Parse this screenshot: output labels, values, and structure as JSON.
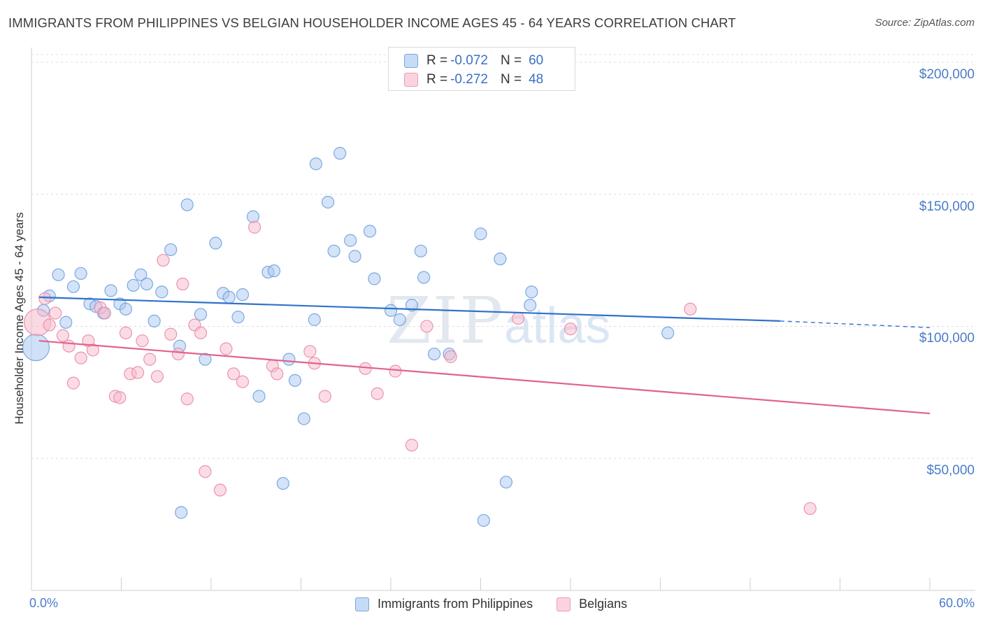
{
  "title": "IMMIGRANTS FROM PHILIPPINES VS BELGIAN HOUSEHOLDER INCOME AGES 45 - 64 YEARS CORRELATION CHART",
  "source": "Source: ZipAtlas.com",
  "watermark": {
    "main": "ZIP",
    "sub": "atlas"
  },
  "stats": [
    {
      "r_label": "R =",
      "r_value": "-0.072",
      "n_label": "N =",
      "n_value": "60",
      "color": "#a9c8f0"
    },
    {
      "r_label": "R =",
      "r_value": "-0.272",
      "n_label": "N =",
      "n_value": "48",
      "color": "#f7b9cc"
    }
  ],
  "legend": [
    {
      "label": "Immigrants from Philippines",
      "color": "#a9c8f0"
    },
    {
      "label": "Belgians",
      "color": "#f7b9cc"
    }
  ],
  "axes": {
    "ylabel": "Householder Income Ages 45 - 64 years",
    "xmin_label": "0.0%",
    "xmax_label": "60.0%",
    "yticks": [
      {
        "value": 200000,
        "label": "$200,000"
      },
      {
        "value": 150000,
        "label": "$150,000"
      },
      {
        "value": 100000,
        "label": "$100,000"
      },
      {
        "value": 50000,
        "label": "$50,000"
      }
    ]
  },
  "chart_data": {
    "type": "scatter",
    "title": "IMMIGRANTS FROM PHILIPPINES VS BELGIAN HOUSEHOLDER INCOME AGES 45 - 64 YEARS CORRELATION CHART",
    "xlabel": "",
    "ylabel": "Householder Income Ages 45 - 64 years",
    "xlim": [
      0,
      60
    ],
    "ylim": [
      0,
      205000
    ],
    "series": [
      {
        "name": "Immigrants from Philippines",
        "color": "#6fa1e0",
        "fill": "#a9c8f0",
        "trend": {
          "x": [
            0.5,
            50
          ],
          "y": [
            111000,
            102000
          ],
          "dashed_to": [
            60,
            99500
          ],
          "color": "#2f72c9"
        },
        "points": [
          {
            "x": 0.3,
            "y": 92000,
            "big": true
          },
          {
            "x": 0.8,
            "y": 106000
          },
          {
            "x": 1.2,
            "y": 111500
          },
          {
            "x": 1.8,
            "y": 119500
          },
          {
            "x": 2.3,
            "y": 101500
          },
          {
            "x": 2.8,
            "y": 115000
          },
          {
            "x": 3.3,
            "y": 120000
          },
          {
            "x": 3.9,
            "y": 108500
          },
          {
            "x": 4.3,
            "y": 107500
          },
          {
            "x": 4.8,
            "y": 105000
          },
          {
            "x": 5.3,
            "y": 113500
          },
          {
            "x": 5.9,
            "y": 108500
          },
          {
            "x": 6.3,
            "y": 106500
          },
          {
            "x": 6.8,
            "y": 115500
          },
          {
            "x": 7.3,
            "y": 119500
          },
          {
            "x": 7.7,
            "y": 116000
          },
          {
            "x": 8.2,
            "y": 102000
          },
          {
            "x": 8.7,
            "y": 113000
          },
          {
            "x": 9.3,
            "y": 129000
          },
          {
            "x": 9.9,
            "y": 92500
          },
          {
            "x": 10.4,
            "y": 146000
          },
          {
            "x": 11.3,
            "y": 104500
          },
          {
            "x": 11.6,
            "y": 87500
          },
          {
            "x": 12.3,
            "y": 131500
          },
          {
            "x": 12.8,
            "y": 112500
          },
          {
            "x": 13.2,
            "y": 111000
          },
          {
            "x": 13.8,
            "y": 103500
          },
          {
            "x": 14.1,
            "y": 112000
          },
          {
            "x": 14.8,
            "y": 141500
          },
          {
            "x": 15.2,
            "y": 73500
          },
          {
            "x": 15.8,
            "y": 120500
          },
          {
            "x": 16.2,
            "y": 121000
          },
          {
            "x": 16.8,
            "y": 40500
          },
          {
            "x": 17.2,
            "y": 87500
          },
          {
            "x": 17.6,
            "y": 79500
          },
          {
            "x": 18.2,
            "y": 65000
          },
          {
            "x": 18.9,
            "y": 102500
          },
          {
            "x": 19.0,
            "y": 161500
          },
          {
            "x": 19.8,
            "y": 147000
          },
          {
            "x": 20.2,
            "y": 128500
          },
          {
            "x": 20.6,
            "y": 165500
          },
          {
            "x": 21.3,
            "y": 132500
          },
          {
            "x": 21.6,
            "y": 126500
          },
          {
            "x": 22.6,
            "y": 136000
          },
          {
            "x": 22.9,
            "y": 118000
          },
          {
            "x": 24.0,
            "y": 106000
          },
          {
            "x": 24.6,
            "y": 102500
          },
          {
            "x": 25.4,
            "y": 108000
          },
          {
            "x": 26.0,
            "y": 128500
          },
          {
            "x": 26.2,
            "y": 118500
          },
          {
            "x": 26.9,
            "y": 89500
          },
          {
            "x": 27.9,
            "y": 89500
          },
          {
            "x": 30.0,
            "y": 135000
          },
          {
            "x": 30.2,
            "y": 26500
          },
          {
            "x": 31.3,
            "y": 125500
          },
          {
            "x": 31.7,
            "y": 41000
          },
          {
            "x": 33.3,
            "y": 108000
          },
          {
            "x": 33.4,
            "y": 113000
          },
          {
            "x": 42.5,
            "y": 97500
          },
          {
            "x": 10.0,
            "y": 29500
          }
        ]
      },
      {
        "name": "Belgians",
        "color": "#e98aa8",
        "fill": "#f7b9cc",
        "trend": {
          "x": [
            0.5,
            60
          ],
          "y": [
            94500,
            67000
          ],
          "color": "#e2628c"
        },
        "points": [
          {
            "x": 0.4,
            "y": 101500,
            "big": true
          },
          {
            "x": 0.9,
            "y": 110500
          },
          {
            "x": 1.2,
            "y": 100500
          },
          {
            "x": 1.6,
            "y": 105000
          },
          {
            "x": 2.1,
            "y": 96500
          },
          {
            "x": 2.5,
            "y": 92500
          },
          {
            "x": 2.8,
            "y": 78500
          },
          {
            "x": 3.3,
            "y": 88000
          },
          {
            "x": 3.8,
            "y": 94500
          },
          {
            "x": 4.1,
            "y": 91000
          },
          {
            "x": 4.6,
            "y": 107000
          },
          {
            "x": 4.9,
            "y": 105000
          },
          {
            "x": 5.6,
            "y": 73500
          },
          {
            "x": 5.9,
            "y": 73000
          },
          {
            "x": 6.3,
            "y": 97500
          },
          {
            "x": 6.6,
            "y": 82000
          },
          {
            "x": 7.1,
            "y": 82500
          },
          {
            "x": 7.4,
            "y": 94500
          },
          {
            "x": 7.9,
            "y": 87500
          },
          {
            "x": 8.4,
            "y": 81000
          },
          {
            "x": 8.8,
            "y": 125000
          },
          {
            "x": 9.3,
            "y": 97000
          },
          {
            "x": 9.8,
            "y": 89500
          },
          {
            "x": 10.1,
            "y": 116000
          },
          {
            "x": 10.4,
            "y": 72500
          },
          {
            "x": 10.9,
            "y": 100500
          },
          {
            "x": 11.3,
            "y": 97500
          },
          {
            "x": 11.6,
            "y": 45000
          },
          {
            "x": 12.6,
            "y": 38000
          },
          {
            "x": 13.0,
            "y": 91500
          },
          {
            "x": 13.5,
            "y": 82000
          },
          {
            "x": 14.1,
            "y": 79000
          },
          {
            "x": 14.9,
            "y": 137500
          },
          {
            "x": 16.1,
            "y": 85000
          },
          {
            "x": 16.4,
            "y": 82000
          },
          {
            "x": 18.6,
            "y": 90500
          },
          {
            "x": 18.9,
            "y": 86000
          },
          {
            "x": 19.6,
            "y": 73500
          },
          {
            "x": 22.3,
            "y": 84000
          },
          {
            "x": 23.1,
            "y": 74500
          },
          {
            "x": 24.3,
            "y": 83000
          },
          {
            "x": 25.4,
            "y": 55000
          },
          {
            "x": 26.4,
            "y": 100000
          },
          {
            "x": 28.0,
            "y": 88500
          },
          {
            "x": 32.5,
            "y": 103000
          },
          {
            "x": 36.0,
            "y": 99000
          },
          {
            "x": 44.0,
            "y": 106500
          },
          {
            "x": 52.0,
            "y": 31000
          }
        ]
      }
    ]
  }
}
